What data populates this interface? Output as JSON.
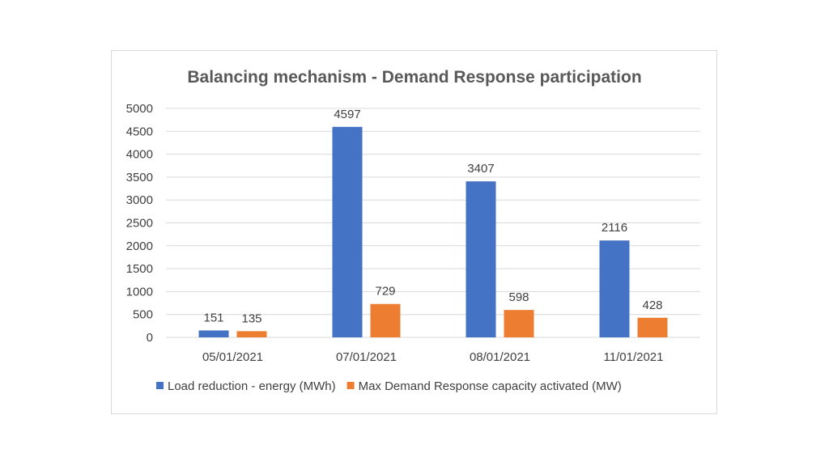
{
  "chart_data": {
    "type": "bar",
    "title": "Balancing mechanism - Demand Response participation",
    "categories": [
      "05/01/2021",
      "07/01/2021",
      "08/01/2021",
      "11/01/2021"
    ],
    "series": [
      {
        "name": "Load reduction - energy (MWh)",
        "values": [
          151,
          4597,
          3407,
          2116
        ],
        "color": "#4472c4"
      },
      {
        "name": "Max Demand Response capacity activated (MW)",
        "values": [
          135,
          729,
          598,
          428
        ],
        "color": "#ed7d31"
      }
    ],
    "ylim": [
      0,
      5000
    ],
    "yticks": [
      0,
      500,
      1000,
      1500,
      2000,
      2500,
      3000,
      3500,
      4000,
      4500,
      5000
    ],
    "grid": true,
    "legend_position": "bottom"
  }
}
